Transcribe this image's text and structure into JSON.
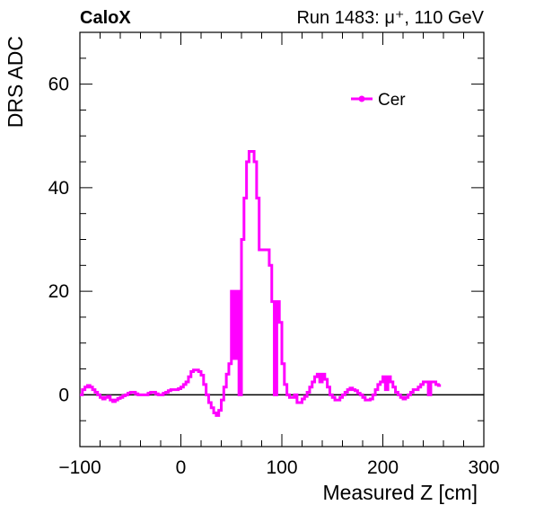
{
  "chart_data": {
    "type": "line",
    "step": true,
    "experiment_label": "CaloX",
    "run_label": "Run 1483:   μ⁺, 110 GeV",
    "xlabel": "Measured Z [cm]",
    "ylabel": "DRS ADC",
    "xlim": [
      -100,
      300
    ],
    "ylim": [
      -10,
      70
    ],
    "xticks": [
      -100,
      0,
      100,
      200,
      300
    ],
    "xtick_labels": [
      "−100",
      "0",
      "100",
      "200",
      "300"
    ],
    "yticks": [
      0,
      20,
      40,
      60
    ],
    "ytick_labels": [
      "0",
      "20",
      "40",
      "60"
    ],
    "grid": false,
    "legend_position": "top-right",
    "zero_line": true,
    "series": [
      {
        "name": "Cer",
        "color": "#ff00ff",
        "bin_width": 2.5,
        "x_start": -100,
        "values": [
          0,
          1,
          1.5,
          1.8,
          1.5,
          1,
          0.5,
          0,
          -0.5,
          -0.8,
          -0.5,
          -0.3,
          -1,
          -1.3,
          -1,
          -0.7,
          -0.5,
          -0.2,
          0,
          0.3,
          0.5,
          0.5,
          0.2,
          0,
          0,
          0,
          0,
          0.3,
          0.5,
          0.5,
          0.2,
          0,
          0,
          0.3,
          0.5,
          0.8,
          1,
          1,
          1,
          1.2,
          1.5,
          2,
          2.5,
          3.5,
          4.5,
          4.8,
          4.8,
          4.5,
          3.8,
          2,
          0,
          -1.5,
          -2.5,
          -3.5,
          -4,
          -3,
          -1,
          1.5,
          4,
          6,
          20,
          7,
          20,
          0,
          30,
          38,
          45,
          47,
          47,
          45,
          38,
          28,
          28,
          28,
          28,
          25,
          18,
          0,
          18,
          14,
          6,
          2,
          0,
          -0.5,
          -0.5,
          0,
          -1.5,
          -1.5,
          -0.8,
          -0.3,
          0.5,
          1.5,
          2.5,
          3.5,
          4,
          2.5,
          4,
          3,
          1.5,
          0,
          -0.5,
          -1,
          -1,
          -0.5,
          0,
          0.5,
          1,
          1.3,
          1,
          0.8,
          0.3,
          0,
          -0.5,
          -1,
          -1,
          -0.8,
          0,
          1,
          2,
          2.5,
          3.5,
          1,
          3.5,
          2.5,
          1.5,
          0.5,
          0,
          -0.5,
          -0.8,
          -0.5,
          0,
          0.5,
          1,
          1,
          1.5,
          2,
          2.5,
          2.5,
          0,
          2.5,
          2.5,
          2,
          1.8
        ]
      }
    ]
  }
}
